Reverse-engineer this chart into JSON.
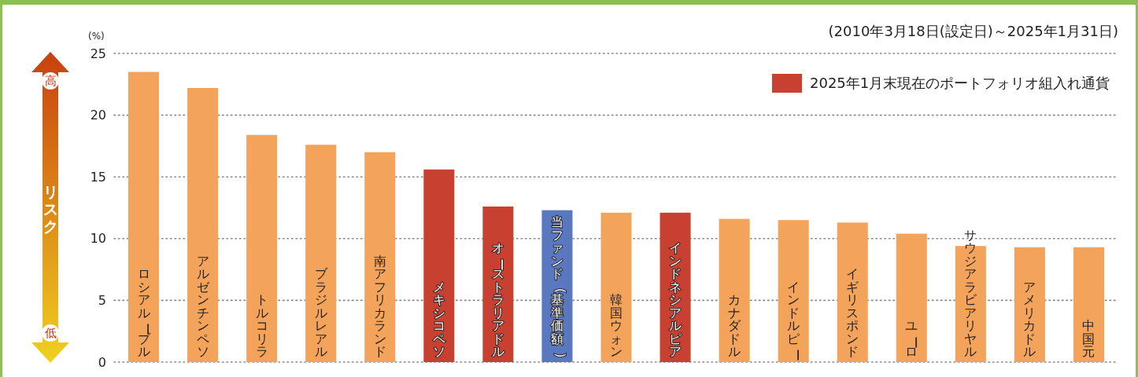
{
  "chart_data": {
    "type": "bar",
    "subtitle": "(2010年3月18日(設定日)～2025年1月31日)",
    "categories": [
      "ロシアルーブル",
      "アルゼンチンペソ",
      "トルコリラ",
      "ブラジルレアル",
      "南アフリカランド",
      "メキシコペソ",
      "オーストラリアドル",
      "当ファンド(基準価額)",
      "韓国ウォン",
      "インドネシアルピア",
      "カナダドル",
      "インドルピー",
      "イギリスポンド",
      "ユーロ",
      "サウジアラビアリヤル",
      "アメリカドル",
      "中国元"
    ],
    "series": [
      {
        "color": "#f3a35a",
        "values": [
          23.5,
          22.2,
          18.4,
          17.6,
          17.0,
          null,
          null,
          null,
          12.1,
          null,
          11.6,
          11.5,
          11.3,
          10.4,
          9.4,
          9.3,
          9.3
        ]
      },
      {
        "name": "2025年1月末現在のポートフォリオ組入れ通貨",
        "color": "#c8402f",
        "values": [
          null,
          null,
          null,
          null,
          null,
          15.6,
          12.6,
          null,
          null,
          12.1,
          null,
          null,
          null,
          null,
          null,
          null,
          null
        ]
      },
      {
        "color": "#5a78c0",
        "values": [
          null,
          null,
          null,
          null,
          null,
          null,
          null,
          12.3,
          null,
          null,
          null,
          null,
          null,
          null,
          null,
          null,
          null
        ]
      }
    ],
    "ylim": [
      0,
      25
    ],
    "yticks": [
      0,
      5,
      10,
      15,
      20,
      25
    ],
    "grid": "y",
    "legend": "top right",
    "annotations": [
      "(%)",
      "高",
      "リスク",
      "低"
    ]
  }
}
